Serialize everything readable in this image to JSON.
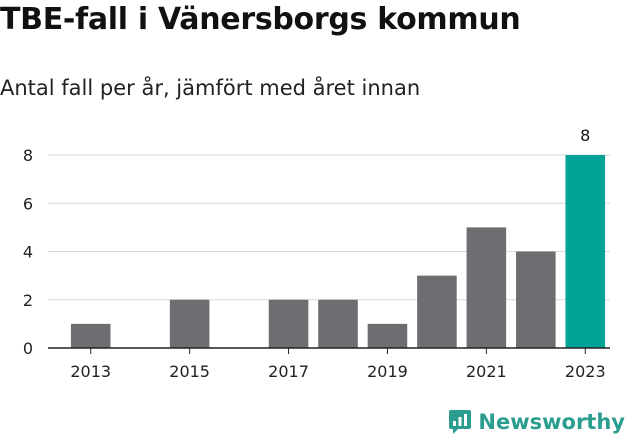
{
  "chart_data": {
    "type": "bar",
    "title": "TBE-fall i Vänersborgs kommun",
    "subtitle": "Antal fall per år, jämfört med året innan",
    "categories": [
      "2013",
      "2014",
      "2015",
      "2016",
      "2017",
      "2018",
      "2019",
      "2020",
      "2021",
      "2022",
      "2023"
    ],
    "values": [
      1,
      0,
      2,
      0,
      2,
      2,
      1,
      3,
      5,
      4,
      8
    ],
    "x_tick_labels": [
      "2013",
      "2015",
      "2017",
      "2019",
      "2021",
      "2023"
    ],
    "y_ticks": [
      0,
      2,
      4,
      6,
      8
    ],
    "ylim": [
      0,
      8
    ],
    "xlabel": "",
    "ylabel": "",
    "grid": true,
    "highlight_index": 10,
    "highlight_label": "8",
    "colors": {
      "bar": "#6e6d72",
      "highlight": "#00a396",
      "grid": "#d9d9d9",
      "axis": "#222222"
    }
  },
  "brand": {
    "name": "Newsworthy",
    "icon": "newsworthy-logo-icon",
    "color": "#2a9d8f"
  }
}
